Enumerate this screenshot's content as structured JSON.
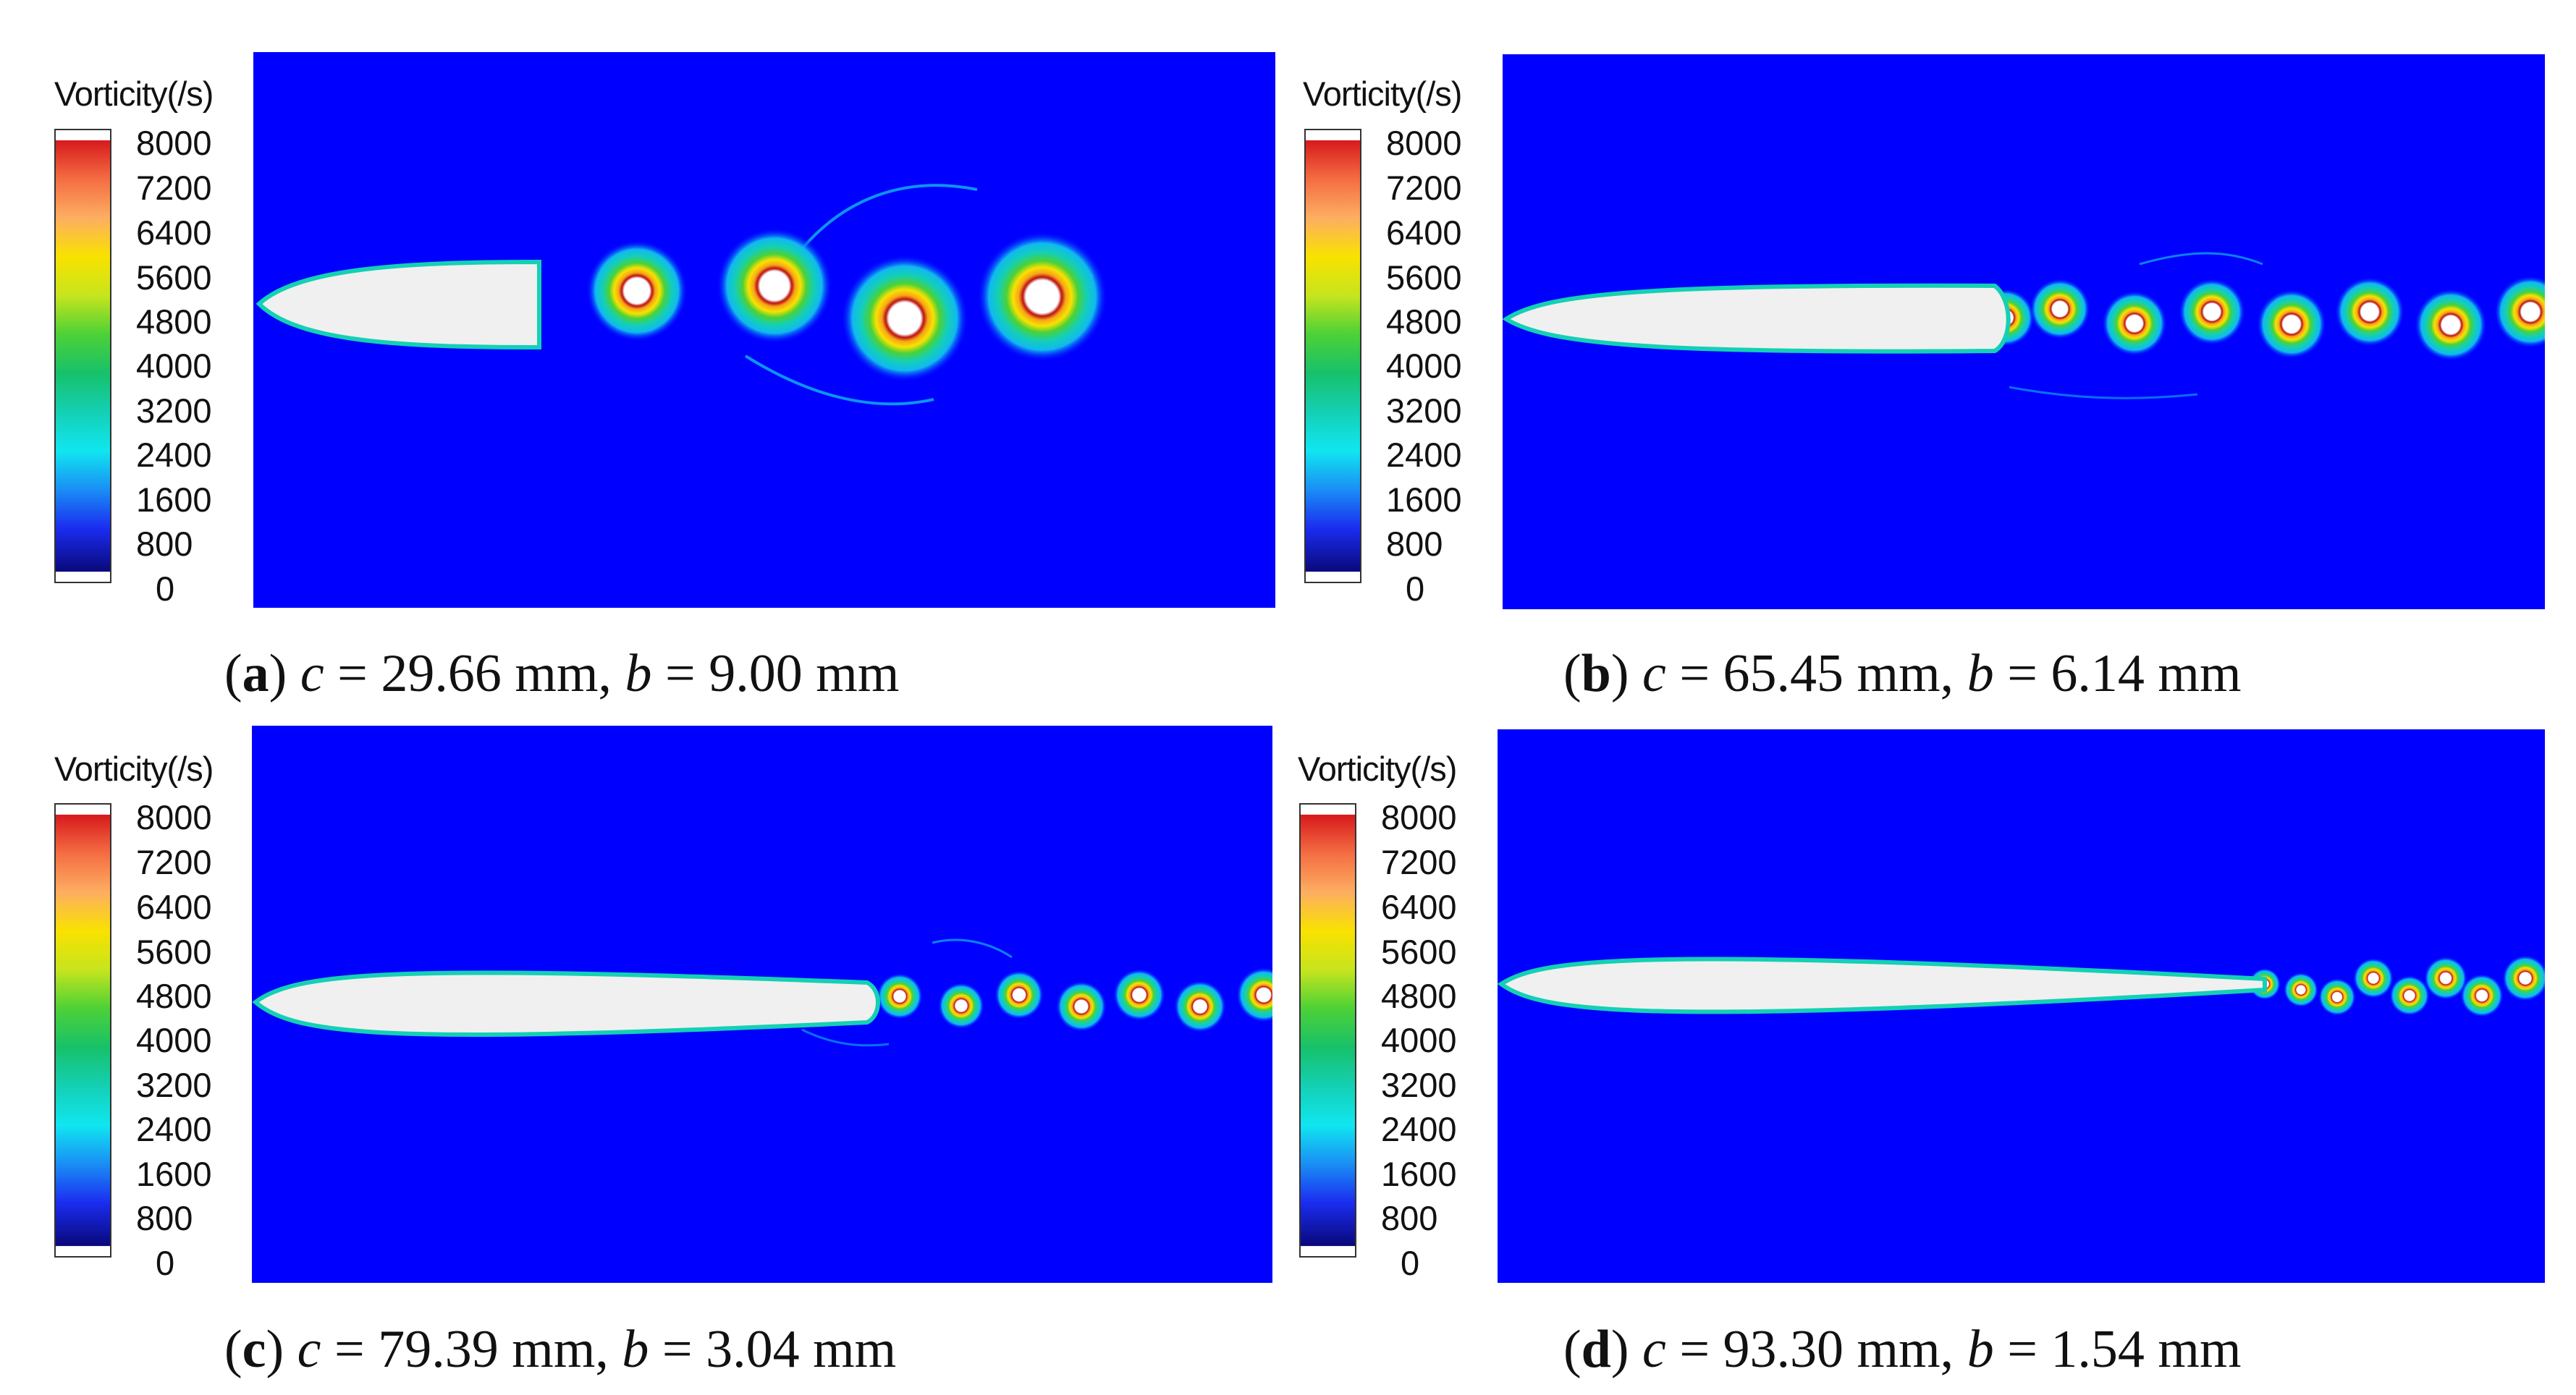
{
  "colorbar": {
    "title": "Vorticity(/s)",
    "ticks": [
      "8000",
      "7200",
      "6400",
      "5600",
      "4800",
      "4000",
      "3200",
      "2400",
      "1600",
      "800",
      "0"
    ],
    "colors": [
      "#d7191c",
      "#f46d43",
      "#fdae61",
      "#f9e200",
      "#c6e51d",
      "#4cd137",
      "#17c16a",
      "#14d0b4",
      "#10e6f0",
      "#1a8ef5",
      "#1b2cf0",
      "#09087a"
    ]
  },
  "background_color": "#0000ff",
  "panels": [
    {
      "label": "a",
      "c_symbol": "c",
      "c_text": " = 29.66 mm, ",
      "b_symbol": "b",
      "b_text": " = 9.00 mm"
    },
    {
      "label": "b",
      "c_symbol": "c",
      "c_text": " = 65.45 mm, ",
      "b_symbol": "b",
      "b_text": " = 6.14 mm"
    },
    {
      "label": "c",
      "c_symbol": "c",
      "c_text": " = 79.39 mm, ",
      "b_symbol": "b",
      "b_text": " = 3.04 mm"
    },
    {
      "label": "d",
      "c_symbol": "c",
      "c_text": " = 93.30 mm, ",
      "b_symbol": "b",
      "b_text": " = 1.54 mm"
    }
  ]
}
